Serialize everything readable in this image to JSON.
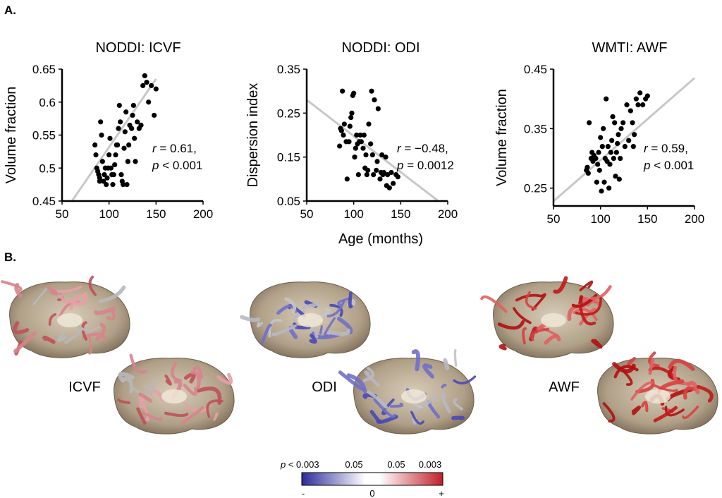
{
  "panel_labels": {
    "a": "A.",
    "b": "B."
  },
  "x_label": "Age (months)",
  "chart_data": [
    {
      "type": "scatter",
      "title": "NODDI: ICVF",
      "ylabel": "Volume fraction",
      "xlabel": "",
      "xlim": [
        50,
        200
      ],
      "ylim": [
        0.45,
        0.65
      ],
      "xticks": [
        "50",
        "100",
        "150",
        "200"
      ],
      "yticks": [
        "0.45",
        "0.5",
        "0.55",
        "0.6",
        "0.65"
      ],
      "stats": {
        "r_label": "r",
        "r_text": " = 0.61,",
        "p_label": "p",
        "p_text": " < 0.001"
      },
      "fit": {
        "x": [
          60,
          150
        ],
        "y": [
          0.449,
          0.635
        ]
      },
      "points": {
        "x": [
          85,
          86,
          87,
          88,
          89,
          90,
          90,
          91,
          92,
          93,
          94,
          95,
          96,
          97,
          98,
          99,
          100,
          101,
          102,
          103,
          104,
          105,
          106,
          107,
          108,
          109,
          110,
          111,
          112,
          113,
          114,
          115,
          116,
          117,
          118,
          119,
          120,
          121,
          122,
          124,
          125,
          126,
          127,
          128,
          130,
          132,
          134,
          136,
          138,
          140,
          142,
          145,
          148,
          150
        ],
        "y": [
          0.535,
          0.52,
          0.5,
          0.495,
          0.49,
          0.485,
          0.48,
          0.57,
          0.55,
          0.51,
          0.48,
          0.49,
          0.5,
          0.475,
          0.485,
          0.5,
          0.52,
          0.545,
          0.5,
          0.49,
          0.475,
          0.49,
          0.505,
          0.52,
          0.535,
          0.535,
          0.56,
          0.595,
          0.57,
          0.49,
          0.48,
          0.475,
          0.53,
          0.555,
          0.585,
          0.475,
          0.51,
          0.535,
          0.565,
          0.56,
          0.58,
          0.595,
          0.545,
          0.51,
          0.57,
          0.56,
          0.565,
          0.625,
          0.64,
          0.63,
          0.6,
          0.625,
          0.58,
          0.62
        ]
      }
    },
    {
      "type": "scatter",
      "title": "NODDI: ODI",
      "ylabel": "Dispersion index",
      "xlabel": "Age (months)",
      "xlim": [
        50,
        200
      ],
      "ylim": [
        0.05,
        0.35
      ],
      "xticks": [
        "50",
        "100",
        "150",
        "200"
      ],
      "yticks": [
        "0.05",
        "0.15",
        "0.25",
        "0.35"
      ],
      "stats": {
        "r_label": "r",
        "r_text": " = −0.48,",
        "p_label": "p",
        "p_text": " = 0.0012"
      },
      "fit": {
        "x": [
          50,
          190
        ],
        "y": [
          0.28,
          0.05
        ]
      },
      "points": {
        "x": [
          85,
          86,
          87,
          88,
          89,
          90,
          92,
          93,
          95,
          96,
          97,
          98,
          99,
          100,
          101,
          102,
          103,
          104,
          105,
          106,
          107,
          108,
          110,
          111,
          112,
          113,
          114,
          115,
          116,
          118,
          119,
          120,
          121,
          122,
          124,
          125,
          126,
          128,
          129,
          130,
          131,
          132,
          134,
          135,
          136,
          138,
          140,
          142,
          145,
          147
        ],
        "y": [
          0.175,
          0.215,
          0.21,
          0.3,
          0.2,
          0.225,
          0.185,
          0.1,
          0.185,
          0.22,
          0.24,
          0.25,
          0.29,
          0.295,
          0.15,
          0.17,
          0.2,
          0.18,
          0.11,
          0.185,
          0.2,
          0.185,
          0.17,
          0.2,
          0.125,
          0.155,
          0.11,
          0.12,
          0.225,
          0.18,
          0.3,
          0.155,
          0.11,
          0.28,
          0.12,
          0.14,
          0.26,
          0.1,
          0.115,
          0.155,
          0.11,
          0.115,
          0.15,
          0.085,
          0.11,
          0.08,
          0.115,
          0.09,
          0.11,
          0.105
        ]
      }
    },
    {
      "type": "scatter",
      "title": "WMTI: AWF",
      "ylabel": "Volume fraction",
      "xlabel": "",
      "xlim": [
        50,
        200
      ],
      "ylim": [
        0.22,
        0.45
      ],
      "xticks": [
        "50",
        "100",
        "150",
        "200"
      ],
      "yticks": [
        "0.25",
        "0.35",
        "0.45"
      ],
      "stats": {
        "r_label": "r",
        "r_text": " = 0.59,",
        "p_label": "p",
        "p_text": " < 0.001"
      },
      "fit": {
        "x": [
          50,
          200
        ],
        "y": [
          0.228,
          0.435
        ]
      },
      "points": {
        "x": [
          85,
          86,
          87,
          88,
          90,
          91,
          92,
          93,
          95,
          96,
          97,
          98,
          99,
          100,
          101,
          102,
          103,
          104,
          105,
          106,
          107,
          108,
          109,
          110,
          111,
          112,
          113,
          114,
          115,
          116,
          117,
          118,
          119,
          120,
          121,
          122,
          124,
          126,
          128,
          130,
          132,
          134,
          135,
          136,
          138,
          140,
          142,
          145,
          148,
          150
        ],
        "y": [
          0.28,
          0.285,
          0.275,
          0.36,
          0.3,
          0.31,
          0.295,
          0.305,
          0.3,
          0.26,
          0.29,
          0.31,
          0.28,
          0.335,
          0.245,
          0.32,
          0.35,
          0.26,
          0.3,
          0.4,
          0.295,
          0.32,
          0.25,
          0.29,
          0.31,
          0.33,
          0.37,
          0.3,
          0.36,
          0.27,
          0.31,
          0.325,
          0.34,
          0.265,
          0.3,
          0.35,
          0.36,
          0.32,
          0.39,
          0.33,
          0.38,
          0.36,
          0.32,
          0.34,
          0.4,
          0.39,
          0.41,
          0.39,
          0.4,
          0.405
        ]
      }
    }
  ],
  "brains": [
    {
      "label": "ICVF",
      "palette": [
        "#c0505a",
        "#d7848c",
        "#b8b8b8",
        "#e5a0a6"
      ]
    },
    {
      "label": "ODI",
      "palette": [
        "#4848b8",
        "#7070c8",
        "#b8b8c4",
        "#c4c4c8"
      ]
    },
    {
      "label": "AWF",
      "palette": [
        "#c01818",
        "#d84040",
        "#e06060",
        "#b01010"
      ]
    }
  ],
  "colorbar": {
    "top_labels": {
      "p_label": "p",
      "p_text": " < 0.003",
      "a": "0.05",
      "b": "0.05",
      "c": "0.003"
    },
    "bottom_labels": {
      "minus": "-",
      "zero": "0",
      "plus": "+"
    },
    "colors": [
      "#2b2b9a",
      "#ffffff",
      "#c0202a"
    ]
  },
  "colors": {
    "fit_line": "#c8c8c8",
    "points": "#000000",
    "cortex": "#a89880"
  }
}
